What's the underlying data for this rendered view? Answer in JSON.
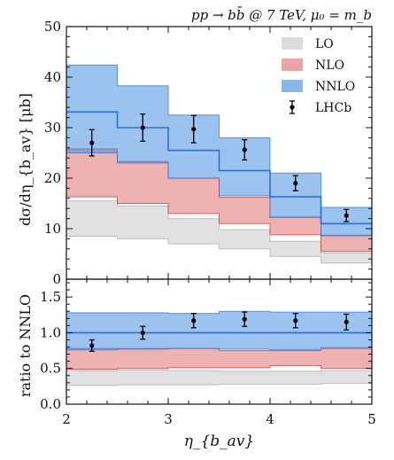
{
  "chart_data": {
    "type": "line",
    "title": "pp → bb̄ @ 7 TeV, μ₀ = m_b",
    "x_edges": [
      2.0,
      2.5,
      3.0,
      3.5,
      4.0,
      4.5,
      5.0
    ],
    "xlim": [
      2,
      5
    ],
    "xticks": [
      "2",
      "3",
      "4",
      "5"
    ],
    "xlabel": "η_{b_av}",
    "panels": [
      {
        "name": "main",
        "ylabel": "dσ/dη_{b_av} [μb]",
        "ylim": [
          0,
          50
        ],
        "yticks": [
          "0",
          "10",
          "20",
          "30",
          "40",
          "50"
        ],
        "series": [
          {
            "name": "LO",
            "color": "#cccccc",
            "type": "band",
            "low": [
              8.5,
              8.0,
              7.0,
              6.0,
              4.5,
              3.2
            ],
            "high": [
              15.5,
              14.5,
              12.0,
              9.8,
              7.5,
              5.2
            ]
          },
          {
            "name": "NLO",
            "color": "#e06666",
            "type": "band",
            "low": [
              16.3,
              15.0,
              13.0,
              11.0,
              8.8,
              5.5
            ],
            "high": [
              25.8,
              23.3,
              20.0,
              16.2,
              12.2,
              8.7
            ]
          },
          {
            "name": "NNLO",
            "color": "#4a90e2",
            "type": "band",
            "central": [
              33.1,
              30.0,
              25.5,
              21.5,
              16.3,
              11.0
            ],
            "low": [
              25.0,
              23.0,
              20.0,
              16.5,
              12.4,
              8.6
            ],
            "high": [
              42.4,
              38.3,
              32.5,
              28.0,
              21.0,
              14.2
            ]
          },
          {
            "name": "LHCb",
            "color": "#000000",
            "type": "points",
            "x": [
              2.25,
              2.75,
              3.25,
              3.75,
              4.25,
              4.75
            ],
            "y": [
              27.0,
              30.0,
              29.7,
              25.6,
              19.0,
              12.6
            ],
            "err": [
              2.6,
              2.7,
              2.7,
              2.0,
              1.5,
              1.2
            ]
          }
        ]
      },
      {
        "name": "ratio",
        "ylabel": "ratio to NNLO",
        "ylim": [
          0.0,
          1.75
        ],
        "yticks": [
          "0.0",
          "0.5",
          "1.0",
          "1.5"
        ],
        "series": [
          {
            "name": "LO",
            "type": "band",
            "low": [
              0.26,
              0.27,
              0.27,
              0.28,
              0.28,
              0.29
            ],
            "high": [
              0.47,
              0.48,
              0.47,
              0.46,
              0.46,
              0.47
            ]
          },
          {
            "name": "NLO",
            "type": "band",
            "low": [
              0.49,
              0.5,
              0.51,
              0.51,
              0.54,
              0.5
            ],
            "high": [
              0.78,
              0.78,
              0.78,
              0.75,
              0.75,
              0.79
            ]
          },
          {
            "name": "NNLO",
            "type": "band",
            "central": [
              1.0,
              1.0,
              1.0,
              1.0,
              1.0,
              1.0
            ],
            "low": [
              0.76,
              0.77,
              0.78,
              0.77,
              0.76,
              0.78
            ],
            "high": [
              1.28,
              1.28,
              1.27,
              1.3,
              1.29,
              1.29
            ]
          },
          {
            "name": "LHCb",
            "type": "points",
            "x": [
              2.25,
              2.75,
              3.25,
              3.75,
              4.25,
              4.75
            ],
            "y": [
              0.82,
              1.0,
              1.17,
              1.19,
              1.17,
              1.15
            ],
            "err": [
              0.08,
              0.09,
              0.1,
              0.1,
              0.1,
              0.11
            ]
          }
        ]
      }
    ],
    "legend": {
      "placement": "top-right",
      "entries": [
        "LO",
        "NLO",
        "NNLO",
        "LHCb"
      ]
    }
  }
}
